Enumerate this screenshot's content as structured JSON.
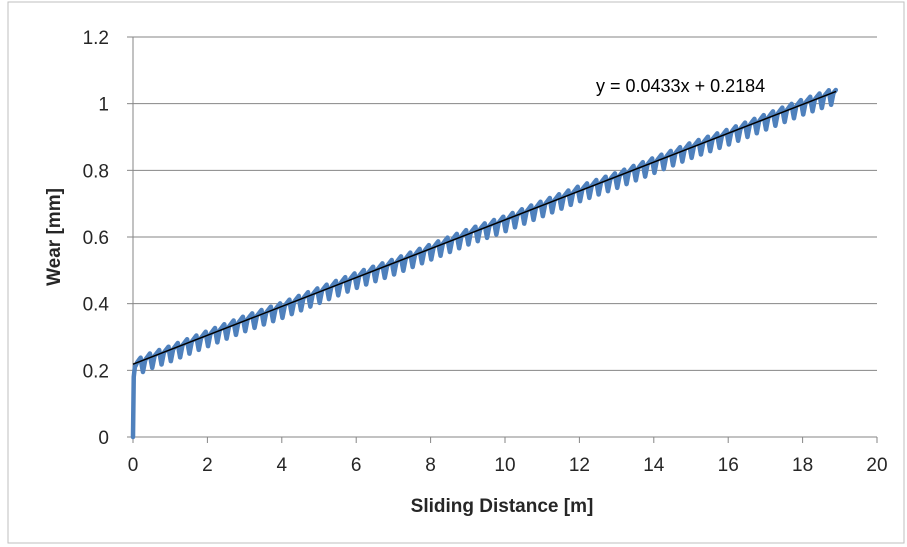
{
  "chart_data": {
    "type": "line",
    "title": "",
    "xlabel": "Sliding Distance [m]",
    "ylabel": "Wear [mm]",
    "xlim": [
      0,
      20
    ],
    "ylim": [
      0,
      1.2
    ],
    "x_ticks": [
      "0",
      "2",
      "4",
      "6",
      "8",
      "10",
      "12",
      "14",
      "16",
      "18",
      "20"
    ],
    "y_ticks": [
      "0",
      "0.2",
      "0.4",
      "0.6",
      "0.8",
      "1",
      "1.2"
    ],
    "grid": "horizontal",
    "legend": "none",
    "series": [
      {
        "color": "#4f81bd",
        "x": [
          0,
          0.02,
          0.05,
          0.1,
          0.5,
          1,
          2,
          3,
          4,
          5,
          6,
          7,
          8,
          9,
          10,
          11,
          12,
          13,
          14,
          15,
          16,
          17,
          18,
          18.9
        ],
        "y": [
          0,
          0.18,
          0.21,
          0.22,
          0.24,
          0.26,
          0.305,
          0.35,
          0.39,
          0.435,
          0.48,
          0.52,
          0.565,
          0.61,
          0.65,
          0.695,
          0.74,
          0.78,
          0.825,
          0.87,
          0.91,
          0.955,
          1.0,
          1.035
        ],
        "oscillation": {
          "period": 0.25,
          "amplitude": 0.04,
          "style": "sawtooth dips"
        }
      }
    ],
    "trendline": {
      "type": "linear",
      "slope": 0.0433,
      "intercept": 0.2184,
      "x_range": [
        0,
        18.9
      ],
      "color": "#000000",
      "equation_label": "y = 0.0433x + 0.2184"
    }
  }
}
